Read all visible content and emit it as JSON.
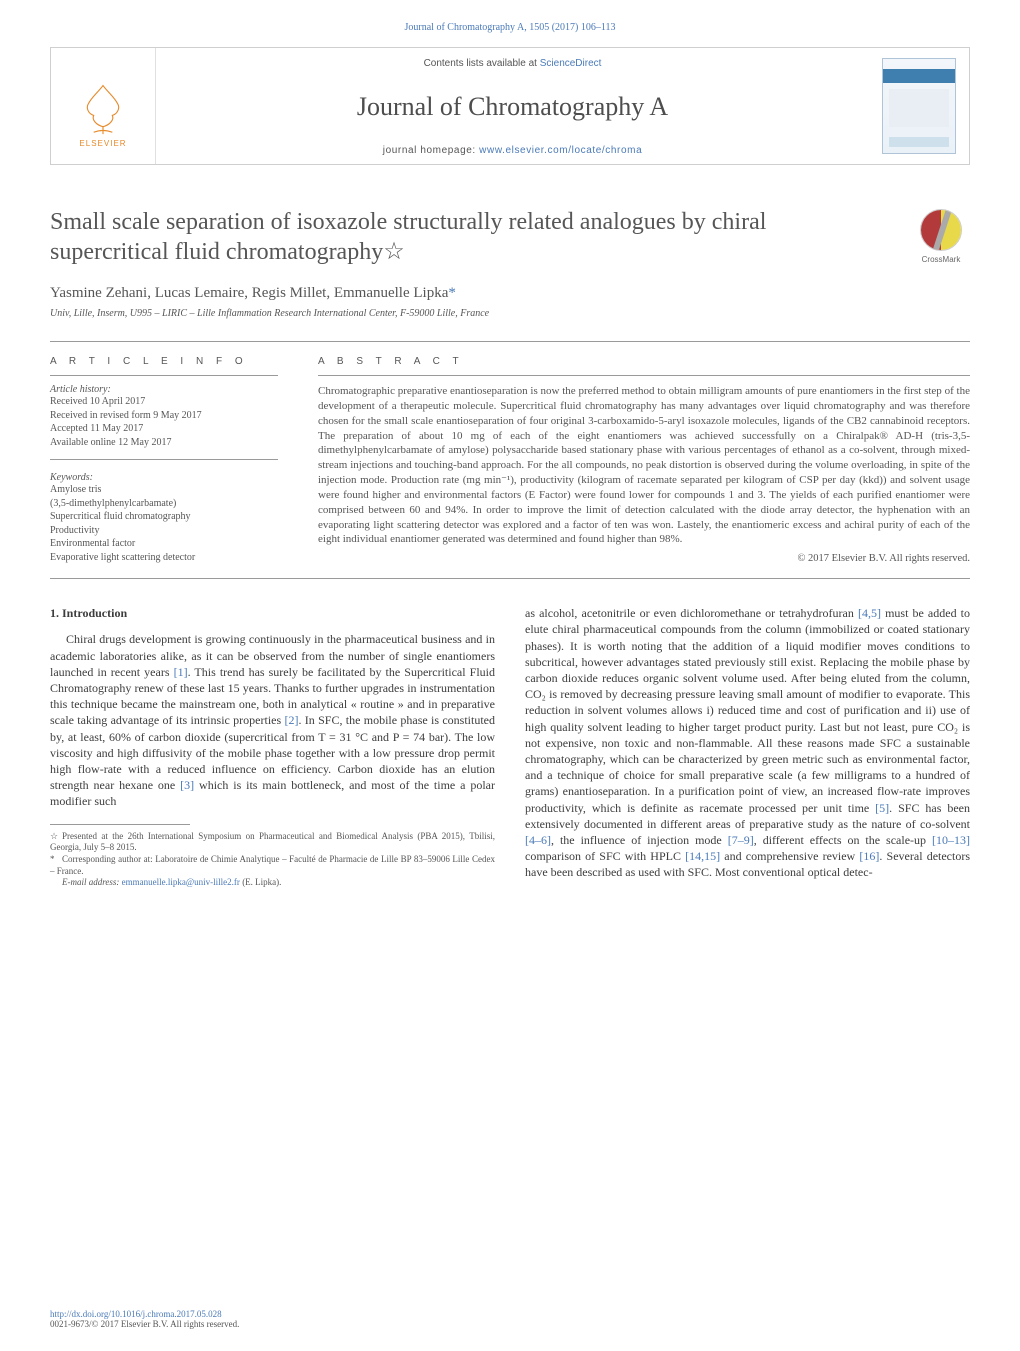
{
  "colors": {
    "link": "#4a7ab8",
    "text": "#3b3b3b",
    "muted": "#565656",
    "rule": "#9a9a9a",
    "elsevier_orange": "#e78a2a",
    "crossmark_left": "#b33a3a",
    "crossmark_right": "#e8d94a",
    "background": "#ffffff"
  },
  "header": {
    "top_citation": "Journal of Chromatography A, 1505 (2017) 106–113",
    "contents_prefix": "Contents lists available at ",
    "contents_link": "ScienceDirect",
    "journal_title": "Journal of Chromatography A",
    "homepage_prefix": "journal homepage: ",
    "homepage_link": "www.elsevier.com/locate/chroma",
    "publisher_logo_text": "ELSEVIER"
  },
  "crossmark": {
    "label": "CrossMark"
  },
  "article": {
    "title": "Small scale separation of isoxazole structurally related analogues by chiral supercritical fluid chromatography☆",
    "authors": "Yasmine Zehani, Lucas Lemaire, Regis Millet, Emmanuelle Lipka",
    "corr_mark": "*",
    "affiliation": "Univ, Lille, Inserm, U995 – LIRIC – Lille Inflammation Research International Center, F-59000 Lille, France"
  },
  "article_info": {
    "heading": "A R T I C L E   I N F O",
    "history_label": "Article history:",
    "history": {
      "received": "Received 10 April 2017",
      "revised": "Received in revised form 9 May 2017",
      "accepted": "Accepted 11 May 2017",
      "online": "Available online 12 May 2017"
    },
    "keywords_label": "Keywords:",
    "keywords": [
      "Amylose tris",
      "(3,5-dimethylphenylcarbamate)",
      "Supercritical fluid chromatography",
      "Productivity",
      "Environmental factor",
      "Evaporative light scattering detector"
    ]
  },
  "abstract": {
    "heading": "A B S T R A C T",
    "text": "Chromatographic preparative enantioseparation is now the preferred method to obtain milligram amounts of pure enantiomers in the first step of the development of a therapeutic molecule. Supercritical fluid chromatography has many advantages over liquid chromatography and was therefore chosen for the small scale enantioseparation of four original 3-carboxamido-5-aryl isoxazole molecules, ligands of the CB2 cannabinoid receptors. The preparation of about 10 mg of each of the eight enantiomers was achieved successfully on a Chiralpak® AD-H (tris-3,5-dimethylphenylcarbamate of amylose) polysaccharide based stationary phase with various percentages of ethanol as a co-solvent, through mixed-stream injections and touching-band approach. For the all compounds, no peak distortion is observed during the volume overloading, in spite of the injection mode. Production rate (mg min⁻¹), productivity (kilogram of racemate separated per kilogram of CSP per day (kkd)) and solvent usage were found higher and environmental factors (E Factor) were found lower for compounds 1 and 3. The yields of each purified enantiomer were comprised between 60 and 94%. In order to improve the limit of detection calculated with the diode array detector, the hyphenation with an evaporating light scattering detector was explored and a factor of ten was won. Lastely, the enantiomeric excess and achiral purity of each of the eight individual enantiomer generated was determined and found higher than 98%.",
    "copyright": "© 2017 Elsevier B.V. All rights reserved."
  },
  "body": {
    "section_number": "1.",
    "section_title": "Introduction",
    "col1": "Chiral drugs development is growing continuously in the pharmaceutical business and in academic laboratories alike, as it can be observed from the number of single enantiomers launched in recent years [1]. This trend has surely be facilitated by the Supercritical Fluid Chromatography renew of these last 15 years. Thanks to further upgrades in instrumentation this technique became the mainstream one, both in analytical « routine » and in preparative scale taking advantage of its intrinsic properties [2]. In SFC, the mobile phase is constituted by, at least, 60% of carbon dioxide (supercritical from T = 31 °C and P = 74 bar). The low viscosity and high diffusivity of the mobile phase together with a low pressure drop permit high flow-rate with a reduced influence on efficiency. Carbon dioxide has an elution strength near hexane one [3] which is its main bottleneck, and most of the time a polar modifier such",
    "col2": "as alcohol, acetonitrile or even dichloromethane or tetrahydrofuran [4,5] must be added to elute chiral pharmaceutical compounds from the column (immobilized or coated stationary phases). It is worth noting that the addition of a liquid modifier moves conditions to subcritical, however advantages stated previously still exist. Replacing the mobile phase by carbon dioxide reduces organic solvent volume used. After being eluted from the column, CO₂ is removed by decreasing pressure leaving small amount of modifier to evaporate. This reduction in solvent volumes allows i) reduced time and cost of purification and ii) use of high quality solvent leading to higher target product purity. Last but not least, pure CO₂ is not expensive, non toxic and non-flammable. All these reasons made SFC a sustainable chromatography, which can be characterized by green metric such as environmental factor, and a technique of choice for small preparative scale (a few milligrams to a hundred of grams) enantioseparation. In a purification point of view, an increased flow-rate improves productivity, which is definite as racemate processed per unit time [5]. SFC has been extensively documented in different areas of preparative study as the nature of co-solvent [4–6], the influence of injection mode [7–9], different effects on the scale-up [10–13] comparison of SFC with HPLC [14,15] and comprehensive review [16]. Several detectors have been described as used with SFC. Most conventional optical detec-"
  },
  "footnotes": {
    "presented": "Presented at the 26th International Symposium on Pharmaceutical and Biomedical Analysis (PBA 2015), Tbilisi, Georgia, July 5–8 2015.",
    "corresponding": "Corresponding author at: Laboratoire de Chimie Analytique – Faculté de Pharmacie de Lille BP 83–59006 Lille Cedex – France.",
    "email_label": "E-mail address: ",
    "email": "emmanuelle.lipka@univ-lille2.fr",
    "email_suffix": " (E. Lipka)."
  },
  "bottom": {
    "doi": "http://dx.doi.org/10.1016/j.chroma.2017.05.028",
    "issn_line": "0021-9673/© 2017 Elsevier B.V. All rights reserved."
  }
}
